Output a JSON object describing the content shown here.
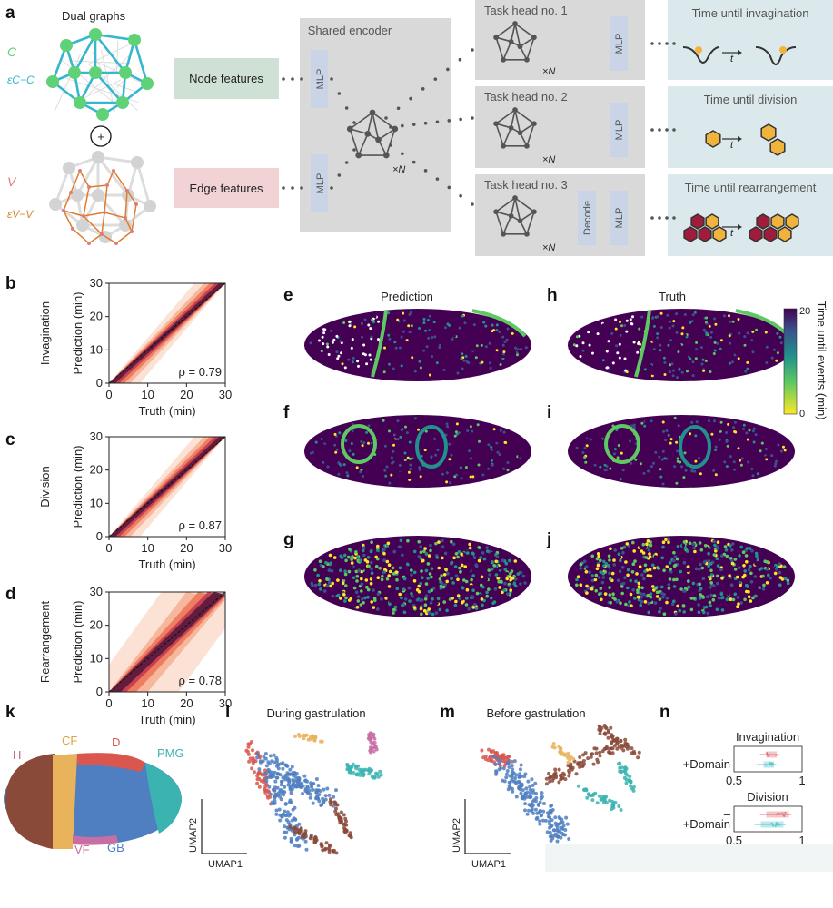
{
  "panel_a": {
    "label": "a",
    "dual_graphs_title": "Dual graphs",
    "symbols": {
      "c": "C",
      "e_cc": "εC−C",
      "v": "V",
      "e_vv": "εV−V",
      "plus": "+"
    },
    "node_features": "Node features",
    "edge_features": "Edge features",
    "shared_encoder": "Shared encoder",
    "mlp": "MLP",
    "times_n": "×N",
    "decode": "Decode",
    "task_heads": [
      "Task head no. 1",
      "Task head no. 2",
      "Task head no. 3"
    ],
    "outputs": [
      "Time until invagination",
      "Time until division",
      "Time until rearrangement"
    ],
    "t_symbol": "t",
    "colors": {
      "node_box": "#cfe0d4",
      "edge_box": "#f1d3d6",
      "encoder": "#d9d9d9",
      "mlp": "#c9d4e6",
      "output_box": "#dce9ec",
      "cell_graph": "#36b7cf",
      "cell_node": "#5fd176",
      "vertex_graph": "#e07b2c",
      "hexagon": "#f0b43c",
      "hexagon_dark": "#a01c3c"
    }
  },
  "chart_data": [
    {
      "panel": "b",
      "type": "heatmap",
      "ylabel_group": "Invagination",
      "xlabel": "Truth (min)",
      "ylabel": "Prediction (min)",
      "xlim": [
        0,
        30
      ],
      "ylim": [
        0,
        30
      ],
      "ticks": [
        "0",
        "10",
        "20",
        "30"
      ],
      "annotation": "ρ = 0.79",
      "rho": 0.79
    },
    {
      "panel": "c",
      "type": "heatmap",
      "ylabel_group": "Division",
      "xlabel": "Truth (min)",
      "ylabel": "Prediction (min)",
      "xlim": [
        0,
        30
      ],
      "ylim": [
        0,
        30
      ],
      "ticks": [
        "0",
        "10",
        "20",
        "30"
      ],
      "annotation": "ρ = 0.87",
      "rho": 0.87
    },
    {
      "panel": "d",
      "type": "heatmap",
      "ylabel_group": "Rearrangement",
      "xlabel": "Truth (min)",
      "ylabel": "Prediction (min)",
      "xlim": [
        0,
        30
      ],
      "ylim": [
        0,
        30
      ],
      "ticks": [
        "0",
        "10",
        "20",
        "30"
      ],
      "annotation": "ρ = 0.78",
      "rho": 0.78
    },
    {
      "panel": "n",
      "type": "box",
      "title": "Invagination",
      "categories": [
        "–",
        "+Domain"
      ],
      "xlim": [
        0.5,
        1
      ],
      "ticks": [
        "0.5",
        "1"
      ],
      "medians": [
        0.78,
        0.76
      ],
      "colors": [
        "#e0767a",
        "#5cc6cc"
      ]
    },
    {
      "panel": "n",
      "type": "box",
      "title": "Division",
      "categories": [
        "–",
        "+Domain"
      ],
      "xlim": [
        0.5,
        1
      ],
      "ticks": [
        "0.5",
        "1"
      ],
      "medians": [
        0.84,
        0.8
      ],
      "colors": [
        "#e0767a",
        "#5cc6cc"
      ]
    }
  ],
  "embryos": {
    "labels": {
      "e": "e",
      "f": "f",
      "g": "g",
      "h": "h",
      "i": "i",
      "j": "j"
    },
    "prediction_title": "Prediction",
    "truth_title": "Truth",
    "colorbar": {
      "label": "Time until events (min)",
      "max": "20",
      "min": "0",
      "colors": [
        "#fde725",
        "#5ec962",
        "#21918c",
        "#3b528b",
        "#440154"
      ]
    }
  },
  "panel_k": {
    "label": "k",
    "domains": [
      "H",
      "CF",
      "D",
      "PMG",
      "VF",
      "GB"
    ],
    "colors": {
      "H": "#8a4a3a",
      "CF": "#e8b35a",
      "D": "#d9574f",
      "PMG": "#3bb4b1",
      "VF": "#c76fa5",
      "GB": "#4f7fc1"
    }
  },
  "panel_l": {
    "label": "l",
    "title": "During gastrulation",
    "xaxis": "UMAP1",
    "yaxis": "UMAP2"
  },
  "panel_m": {
    "label": "m",
    "title": "Before gastrulation",
    "xaxis": "UMAP1",
    "yaxis": "UMAP2"
  },
  "panel_n": {
    "label": "n"
  }
}
